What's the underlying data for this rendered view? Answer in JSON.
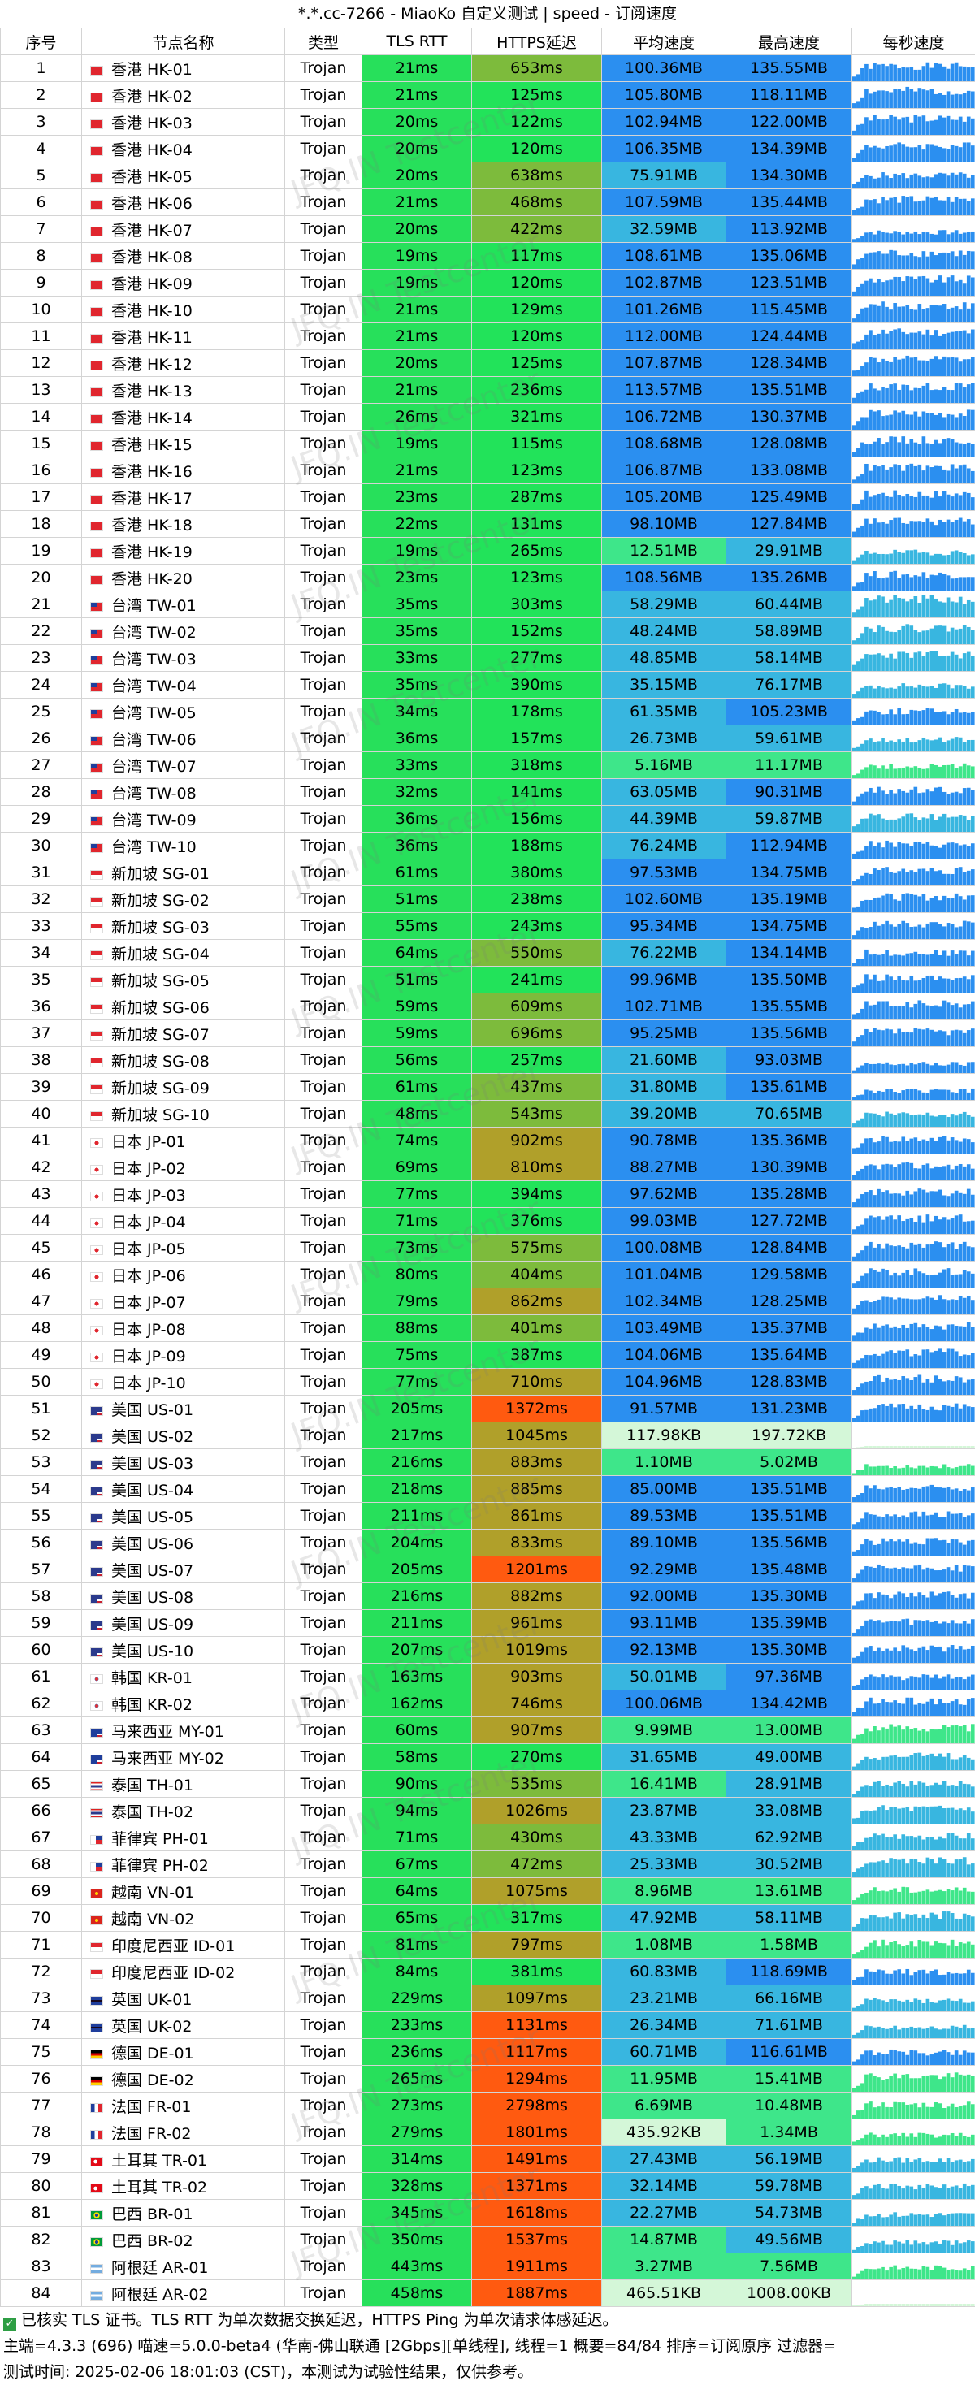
{
  "title": "*.*.cc-7266 - MiaoKo 自定义测试 | speed - 订阅速度",
  "headers": [
    "序号",
    "节点名称",
    "类型",
    "TLS RTT",
    "HTTPS延迟",
    "平均速度",
    "最高速度",
    "每秒速度"
  ],
  "watermark": "JFQ.IN Testcenter",
  "rows": [
    {
      "idx": "1",
      "flag": "hk",
      "name": "香港 HK-01",
      "type": "Trojan",
      "rtt": "21ms",
      "https": "653ms",
      "avg": "100.36MB",
      "max": "135.55MB"
    },
    {
      "idx": "2",
      "flag": "hk",
      "name": "香港 HK-02",
      "type": "Trojan",
      "rtt": "21ms",
      "https": "125ms",
      "avg": "105.80MB",
      "max": "118.11MB"
    },
    {
      "idx": "3",
      "flag": "hk",
      "name": "香港 HK-03",
      "type": "Trojan",
      "rtt": "20ms",
      "https": "122ms",
      "avg": "102.94MB",
      "max": "122.00MB"
    },
    {
      "idx": "4",
      "flag": "hk",
      "name": "香港 HK-04",
      "type": "Trojan",
      "rtt": "20ms",
      "https": "120ms",
      "avg": "106.35MB",
      "max": "134.39MB"
    },
    {
      "idx": "5",
      "flag": "hk",
      "name": "香港 HK-05",
      "type": "Trojan",
      "rtt": "20ms",
      "https": "638ms",
      "avg": "75.91MB",
      "max": "134.30MB"
    },
    {
      "idx": "6",
      "flag": "hk",
      "name": "香港 HK-06",
      "type": "Trojan",
      "rtt": "21ms",
      "https": "468ms",
      "avg": "107.59MB",
      "max": "135.44MB"
    },
    {
      "idx": "7",
      "flag": "hk",
      "name": "香港 HK-07",
      "type": "Trojan",
      "rtt": "20ms",
      "https": "422ms",
      "avg": "32.59MB",
      "max": "113.92MB"
    },
    {
      "idx": "8",
      "flag": "hk",
      "name": "香港 HK-08",
      "type": "Trojan",
      "rtt": "19ms",
      "https": "117ms",
      "avg": "108.61MB",
      "max": "135.06MB"
    },
    {
      "idx": "9",
      "flag": "hk",
      "name": "香港 HK-09",
      "type": "Trojan",
      "rtt": "19ms",
      "https": "120ms",
      "avg": "102.87MB",
      "max": "123.51MB"
    },
    {
      "idx": "10",
      "flag": "hk",
      "name": "香港 HK-10",
      "type": "Trojan",
      "rtt": "21ms",
      "https": "129ms",
      "avg": "101.26MB",
      "max": "115.45MB"
    },
    {
      "idx": "11",
      "flag": "hk",
      "name": "香港 HK-11",
      "type": "Trojan",
      "rtt": "21ms",
      "https": "120ms",
      "avg": "112.00MB",
      "max": "124.44MB"
    },
    {
      "idx": "12",
      "flag": "hk",
      "name": "香港 HK-12",
      "type": "Trojan",
      "rtt": "20ms",
      "https": "125ms",
      "avg": "107.87MB",
      "max": "128.34MB"
    },
    {
      "idx": "13",
      "flag": "hk",
      "name": "香港 HK-13",
      "type": "Trojan",
      "rtt": "21ms",
      "https": "236ms",
      "avg": "113.57MB",
      "max": "135.51MB"
    },
    {
      "idx": "14",
      "flag": "hk",
      "name": "香港 HK-14",
      "type": "Trojan",
      "rtt": "26ms",
      "https": "321ms",
      "avg": "106.72MB",
      "max": "130.37MB"
    },
    {
      "idx": "15",
      "flag": "hk",
      "name": "香港 HK-15",
      "type": "Trojan",
      "rtt": "19ms",
      "https": "115ms",
      "avg": "108.68MB",
      "max": "128.08MB"
    },
    {
      "idx": "16",
      "flag": "hk",
      "name": "香港 HK-16",
      "type": "Trojan",
      "rtt": "21ms",
      "https": "123ms",
      "avg": "106.87MB",
      "max": "133.08MB"
    },
    {
      "idx": "17",
      "flag": "hk",
      "name": "香港 HK-17",
      "type": "Trojan",
      "rtt": "23ms",
      "https": "287ms",
      "avg": "105.20MB",
      "max": "125.49MB"
    },
    {
      "idx": "18",
      "flag": "hk",
      "name": "香港 HK-18",
      "type": "Trojan",
      "rtt": "22ms",
      "https": "131ms",
      "avg": "98.10MB",
      "max": "127.84MB"
    },
    {
      "idx": "19",
      "flag": "hk",
      "name": "香港 HK-19",
      "type": "Trojan",
      "rtt": "19ms",
      "https": "265ms",
      "avg": "12.51MB",
      "max": "29.91MB"
    },
    {
      "idx": "20",
      "flag": "hk",
      "name": "香港 HK-20",
      "type": "Trojan",
      "rtt": "23ms",
      "https": "123ms",
      "avg": "108.56MB",
      "max": "135.26MB"
    },
    {
      "idx": "21",
      "flag": "tw",
      "name": "台湾 TW-01",
      "type": "Trojan",
      "rtt": "35ms",
      "https": "303ms",
      "avg": "58.29MB",
      "max": "60.44MB"
    },
    {
      "idx": "22",
      "flag": "tw",
      "name": "台湾 TW-02",
      "type": "Trojan",
      "rtt": "35ms",
      "https": "152ms",
      "avg": "48.24MB",
      "max": "58.89MB"
    },
    {
      "idx": "23",
      "flag": "tw",
      "name": "台湾 TW-03",
      "type": "Trojan",
      "rtt": "33ms",
      "https": "277ms",
      "avg": "48.85MB",
      "max": "58.14MB"
    },
    {
      "idx": "24",
      "flag": "tw",
      "name": "台湾 TW-04",
      "type": "Trojan",
      "rtt": "35ms",
      "https": "390ms",
      "avg": "35.15MB",
      "max": "76.17MB"
    },
    {
      "idx": "25",
      "flag": "tw",
      "name": "台湾 TW-05",
      "type": "Trojan",
      "rtt": "34ms",
      "https": "178ms",
      "avg": "61.35MB",
      "max": "105.23MB"
    },
    {
      "idx": "26",
      "flag": "tw",
      "name": "台湾 TW-06",
      "type": "Trojan",
      "rtt": "36ms",
      "https": "157ms",
      "avg": "26.73MB",
      "max": "59.61MB"
    },
    {
      "idx": "27",
      "flag": "tw",
      "name": "台湾 TW-07",
      "type": "Trojan",
      "rtt": "33ms",
      "https": "318ms",
      "avg": "5.16MB",
      "max": "11.17MB"
    },
    {
      "idx": "28",
      "flag": "tw",
      "name": "台湾 TW-08",
      "type": "Trojan",
      "rtt": "32ms",
      "https": "141ms",
      "avg": "63.05MB",
      "max": "90.31MB"
    },
    {
      "idx": "29",
      "flag": "tw",
      "name": "台湾 TW-09",
      "type": "Trojan",
      "rtt": "36ms",
      "https": "156ms",
      "avg": "44.39MB",
      "max": "59.87MB"
    },
    {
      "idx": "30",
      "flag": "tw",
      "name": "台湾 TW-10",
      "type": "Trojan",
      "rtt": "36ms",
      "https": "188ms",
      "avg": "76.24MB",
      "max": "112.94MB"
    },
    {
      "idx": "31",
      "flag": "sg",
      "name": "新加坡 SG-01",
      "type": "Trojan",
      "rtt": "61ms",
      "https": "380ms",
      "avg": "97.53MB",
      "max": "134.75MB"
    },
    {
      "idx": "32",
      "flag": "sg",
      "name": "新加坡 SG-02",
      "type": "Trojan",
      "rtt": "51ms",
      "https": "238ms",
      "avg": "102.60MB",
      "max": "135.19MB"
    },
    {
      "idx": "33",
      "flag": "sg",
      "name": "新加坡 SG-03",
      "type": "Trojan",
      "rtt": "55ms",
      "https": "243ms",
      "avg": "95.34MB",
      "max": "134.75MB"
    },
    {
      "idx": "34",
      "flag": "sg",
      "name": "新加坡 SG-04",
      "type": "Trojan",
      "rtt": "64ms",
      "https": "550ms",
      "avg": "76.22MB",
      "max": "134.14MB"
    },
    {
      "idx": "35",
      "flag": "sg",
      "name": "新加坡 SG-05",
      "type": "Trojan",
      "rtt": "51ms",
      "https": "241ms",
      "avg": "99.96MB",
      "max": "135.50MB"
    },
    {
      "idx": "36",
      "flag": "sg",
      "name": "新加坡 SG-06",
      "type": "Trojan",
      "rtt": "59ms",
      "https": "609ms",
      "avg": "102.71MB",
      "max": "135.55MB"
    },
    {
      "idx": "37",
      "flag": "sg",
      "name": "新加坡 SG-07",
      "type": "Trojan",
      "rtt": "59ms",
      "https": "696ms",
      "avg": "95.25MB",
      "max": "135.56MB"
    },
    {
      "idx": "38",
      "flag": "sg",
      "name": "新加坡 SG-08",
      "type": "Trojan",
      "rtt": "56ms",
      "https": "257ms",
      "avg": "21.60MB",
      "max": "93.03MB"
    },
    {
      "idx": "39",
      "flag": "sg",
      "name": "新加坡 SG-09",
      "type": "Trojan",
      "rtt": "61ms",
      "https": "437ms",
      "avg": "31.80MB",
      "max": "135.61MB"
    },
    {
      "idx": "40",
      "flag": "sg",
      "name": "新加坡 SG-10",
      "type": "Trojan",
      "rtt": "48ms",
      "https": "543ms",
      "avg": "39.20MB",
      "max": "70.65MB"
    },
    {
      "idx": "41",
      "flag": "jp",
      "name": "日本 JP-01",
      "type": "Trojan",
      "rtt": "74ms",
      "https": "902ms",
      "avg": "90.78MB",
      "max": "135.36MB"
    },
    {
      "idx": "42",
      "flag": "jp",
      "name": "日本 JP-02",
      "type": "Trojan",
      "rtt": "69ms",
      "https": "810ms",
      "avg": "88.27MB",
      "max": "130.39MB"
    },
    {
      "idx": "43",
      "flag": "jp",
      "name": "日本 JP-03",
      "type": "Trojan",
      "rtt": "77ms",
      "https": "394ms",
      "avg": "97.62MB",
      "max": "135.28MB"
    },
    {
      "idx": "44",
      "flag": "jp",
      "name": "日本 JP-04",
      "type": "Trojan",
      "rtt": "71ms",
      "https": "376ms",
      "avg": "99.03MB",
      "max": "127.72MB"
    },
    {
      "idx": "45",
      "flag": "jp",
      "name": "日本 JP-05",
      "type": "Trojan",
      "rtt": "73ms",
      "https": "575ms",
      "avg": "100.08MB",
      "max": "128.84MB"
    },
    {
      "idx": "46",
      "flag": "jp",
      "name": "日本 JP-06",
      "type": "Trojan",
      "rtt": "80ms",
      "https": "404ms",
      "avg": "101.04MB",
      "max": "129.58MB"
    },
    {
      "idx": "47",
      "flag": "jp",
      "name": "日本 JP-07",
      "type": "Trojan",
      "rtt": "79ms",
      "https": "862ms",
      "avg": "102.34MB",
      "max": "128.25MB"
    },
    {
      "idx": "48",
      "flag": "jp",
      "name": "日本 JP-08",
      "type": "Trojan",
      "rtt": "88ms",
      "https": "401ms",
      "avg": "103.49MB",
      "max": "135.37MB"
    },
    {
      "idx": "49",
      "flag": "jp",
      "name": "日本 JP-09",
      "type": "Trojan",
      "rtt": "75ms",
      "https": "387ms",
      "avg": "104.06MB",
      "max": "135.64MB"
    },
    {
      "idx": "50",
      "flag": "jp",
      "name": "日本 JP-10",
      "type": "Trojan",
      "rtt": "77ms",
      "https": "710ms",
      "avg": "104.96MB",
      "max": "128.83MB"
    },
    {
      "idx": "51",
      "flag": "us",
      "name": "美国 US-01",
      "type": "Trojan",
      "rtt": "205ms",
      "https": "1372ms",
      "avg": "91.57MB",
      "max": "131.23MB"
    },
    {
      "idx": "52",
      "flag": "us",
      "name": "美国 US-02",
      "type": "Trojan",
      "rtt": "217ms",
      "https": "1045ms",
      "avg": "117.98KB",
      "max": "197.72KB"
    },
    {
      "idx": "53",
      "flag": "us",
      "name": "美国 US-03",
      "type": "Trojan",
      "rtt": "216ms",
      "https": "883ms",
      "avg": "1.10MB",
      "max": "5.02MB"
    },
    {
      "idx": "54",
      "flag": "us",
      "name": "美国 US-04",
      "type": "Trojan",
      "rtt": "218ms",
      "https": "885ms",
      "avg": "85.00MB",
      "max": "135.51MB"
    },
    {
      "idx": "55",
      "flag": "us",
      "name": "美国 US-05",
      "type": "Trojan",
      "rtt": "211ms",
      "https": "861ms",
      "avg": "89.53MB",
      "max": "135.51MB"
    },
    {
      "idx": "56",
      "flag": "us",
      "name": "美国 US-06",
      "type": "Trojan",
      "rtt": "204ms",
      "https": "833ms",
      "avg": "89.10MB",
      "max": "135.56MB"
    },
    {
      "idx": "57",
      "flag": "us",
      "name": "美国 US-07",
      "type": "Trojan",
      "rtt": "205ms",
      "https": "1201ms",
      "avg": "92.29MB",
      "max": "135.48MB"
    },
    {
      "idx": "58",
      "flag": "us",
      "name": "美国 US-08",
      "type": "Trojan",
      "rtt": "216ms",
      "https": "882ms",
      "avg": "92.00MB",
      "max": "135.30MB"
    },
    {
      "idx": "59",
      "flag": "us",
      "name": "美国 US-09",
      "type": "Trojan",
      "rtt": "211ms",
      "https": "961ms",
      "avg": "93.11MB",
      "max": "135.39MB"
    },
    {
      "idx": "60",
      "flag": "us",
      "name": "美国 US-10",
      "type": "Trojan",
      "rtt": "207ms",
      "https": "1019ms",
      "avg": "92.13MB",
      "max": "135.30MB"
    },
    {
      "idx": "61",
      "flag": "kr",
      "name": "韩国 KR-01",
      "type": "Trojan",
      "rtt": "163ms",
      "https": "903ms",
      "avg": "50.01MB",
      "max": "97.36MB"
    },
    {
      "idx": "62",
      "flag": "kr",
      "name": "韩国 KR-02",
      "type": "Trojan",
      "rtt": "162ms",
      "https": "746ms",
      "avg": "100.06MB",
      "max": "134.42MB"
    },
    {
      "idx": "63",
      "flag": "my",
      "name": "马来西亚 MY-01",
      "type": "Trojan",
      "rtt": "60ms",
      "https": "907ms",
      "avg": "9.99MB",
      "max": "13.00MB"
    },
    {
      "idx": "64",
      "flag": "my",
      "name": "马来西亚 MY-02",
      "type": "Trojan",
      "rtt": "58ms",
      "https": "270ms",
      "avg": "31.65MB",
      "max": "49.00MB"
    },
    {
      "idx": "65",
      "flag": "th",
      "name": "泰国 TH-01",
      "type": "Trojan",
      "rtt": "90ms",
      "https": "535ms",
      "avg": "16.41MB",
      "max": "28.91MB"
    },
    {
      "idx": "66",
      "flag": "th",
      "name": "泰国 TH-02",
      "type": "Trojan",
      "rtt": "94ms",
      "https": "1026ms",
      "avg": "23.87MB",
      "max": "33.08MB"
    },
    {
      "idx": "67",
      "flag": "ph",
      "name": "菲律宾 PH-01",
      "type": "Trojan",
      "rtt": "71ms",
      "https": "430ms",
      "avg": "43.33MB",
      "max": "62.92MB"
    },
    {
      "idx": "68",
      "flag": "ph",
      "name": "菲律宾 PH-02",
      "type": "Trojan",
      "rtt": "67ms",
      "https": "472ms",
      "avg": "25.33MB",
      "max": "30.52MB"
    },
    {
      "idx": "69",
      "flag": "vn",
      "name": "越南 VN-01",
      "type": "Trojan",
      "rtt": "64ms",
      "https": "1075ms",
      "avg": "8.96MB",
      "max": "13.61MB"
    },
    {
      "idx": "70",
      "flag": "vn",
      "name": "越南 VN-02",
      "type": "Trojan",
      "rtt": "65ms",
      "https": "317ms",
      "avg": "47.92MB",
      "max": "58.11MB"
    },
    {
      "idx": "71",
      "flag": "id",
      "name": "印度尼西亚 ID-01",
      "type": "Trojan",
      "rtt": "81ms",
      "https": "797ms",
      "avg": "1.08MB",
      "max": "1.58MB"
    },
    {
      "idx": "72",
      "flag": "id",
      "name": "印度尼西亚 ID-02",
      "type": "Trojan",
      "rtt": "84ms",
      "https": "381ms",
      "avg": "60.83MB",
      "max": "118.69MB"
    },
    {
      "idx": "73",
      "flag": "uk",
      "name": "英国 UK-01",
      "type": "Trojan",
      "rtt": "229ms",
      "https": "1097ms",
      "avg": "23.21MB",
      "max": "66.16MB"
    },
    {
      "idx": "74",
      "flag": "uk",
      "name": "英国 UK-02",
      "type": "Trojan",
      "rtt": "233ms",
      "https": "1131ms",
      "avg": "26.34MB",
      "max": "71.61MB"
    },
    {
      "idx": "75",
      "flag": "de",
      "name": "德国 DE-01",
      "type": "Trojan",
      "rtt": "236ms",
      "https": "1117ms",
      "avg": "60.71MB",
      "max": "116.61MB"
    },
    {
      "idx": "76",
      "flag": "de",
      "name": "德国 DE-02",
      "type": "Trojan",
      "rtt": "265ms",
      "https": "1294ms",
      "avg": "11.95MB",
      "max": "15.41MB"
    },
    {
      "idx": "77",
      "flag": "fr",
      "name": "法国 FR-01",
      "type": "Trojan",
      "rtt": "273ms",
      "https": "2798ms",
      "avg": "6.69MB",
      "max": "10.48MB"
    },
    {
      "idx": "78",
      "flag": "fr",
      "name": "法国 FR-02",
      "type": "Trojan",
      "rtt": "279ms",
      "https": "1801ms",
      "avg": "435.92KB",
      "max": "1.34MB"
    },
    {
      "idx": "79",
      "flag": "tr",
      "name": "土耳其 TR-01",
      "type": "Trojan",
      "rtt": "314ms",
      "https": "1491ms",
      "avg": "27.43MB",
      "max": "56.19MB"
    },
    {
      "idx": "80",
      "flag": "tr",
      "name": "土耳其 TR-02",
      "type": "Trojan",
      "rtt": "328ms",
      "https": "1371ms",
      "avg": "32.14MB",
      "max": "59.78MB"
    },
    {
      "idx": "81",
      "flag": "br",
      "name": "巴西 BR-01",
      "type": "Trojan",
      "rtt": "345ms",
      "https": "1618ms",
      "avg": "22.27MB",
      "max": "54.73MB"
    },
    {
      "idx": "82",
      "flag": "br",
      "name": "巴西 BR-02",
      "type": "Trojan",
      "rtt": "350ms",
      "https": "1537ms",
      "avg": "14.87MB",
      "max": "49.56MB"
    },
    {
      "idx": "83",
      "flag": "ar",
      "name": "阿根廷 AR-01",
      "type": "Trojan",
      "rtt": "443ms",
      "https": "1911ms",
      "avg": "3.27MB",
      "max": "7.56MB"
    },
    {
      "idx": "84",
      "flag": "ar",
      "name": "阿根廷 AR-02",
      "type": "Trojan",
      "rtt": "458ms",
      "https": "1887ms",
      "avg": "465.51KB",
      "max": "1008.00KB"
    }
  ],
  "footer": {
    "line1": "已核实 TLS 证书。TLS RTT 为单次数据交换延迟，HTTPS Ping 为单次请求体感延迟。",
    "line2": "主端=4.3.3 (696) 喵速=5.0.0-beta4 (华南-佛山联通 [2Gbps][单线程], 线程=1 概要=84/84 排序=订阅原序 过滤器=",
    "line3": "测试时间:  2025-02-06 18:01:03 (CST)，本测试为试验性结果，仅供参考。"
  },
  "colors": {
    "rtt_green": "#27e05b",
    "https_good": "#22e35a",
    "https_mid": "#7dbb3c",
    "https_warn": "#b0a02a",
    "https_bad": "#ff5a10",
    "speed_high": "#2b8ff0",
    "speed_mid": "#38b6e0",
    "speed_low": "#3ee68a",
    "speed_tiny": "#d4f7d8"
  }
}
